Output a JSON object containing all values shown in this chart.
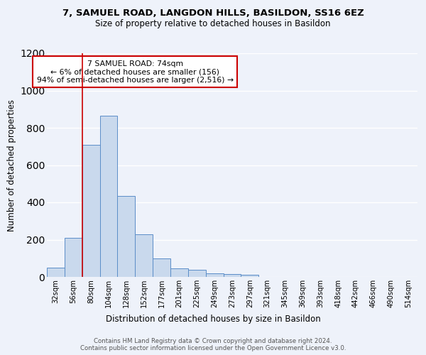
{
  "title1": "7, SAMUEL ROAD, LANGDON HILLS, BASILDON, SS16 6EZ",
  "title2": "Size of property relative to detached houses in Basildon",
  "xlabel": "Distribution of detached houses by size in Basildon",
  "ylabel": "Number of detached properties",
  "footnote": "Contains HM Land Registry data © Crown copyright and database right 2024.\nContains public sector information licensed under the Open Government Licence v3.0.",
  "bin_labels": [
    "32sqm",
    "56sqm",
    "80sqm",
    "104sqm",
    "128sqm",
    "152sqm",
    "177sqm",
    "201sqm",
    "225sqm",
    "249sqm",
    "273sqm",
    "297sqm",
    "321sqm",
    "345sqm",
    "369sqm",
    "393sqm",
    "418sqm",
    "442sqm",
    "466sqm",
    "490sqm",
    "514sqm"
  ],
  "bar_heights": [
    50,
    210,
    710,
    865,
    435,
    230,
    100,
    45,
    40,
    20,
    15,
    10,
    0,
    0,
    0,
    0,
    0,
    0,
    0,
    0,
    0
  ],
  "bar_color": "#c9d9ed",
  "bar_edge_color": "#5b8dc8",
  "background_color": "#eef2fa",
  "grid_color": "#ffffff",
  "annotation_text": "7 SAMUEL ROAD: 74sqm\n← 6% of detached houses are smaller (156)\n94% of semi-detached houses are larger (2,516) →",
  "annotation_box_color": "#ffffff",
  "annotation_box_edge": "#cc0000",
  "red_line_bin": 1.5,
  "ylim": [
    0,
    1200
  ],
  "yticks": [
    0,
    200,
    400,
    600,
    800,
    1000,
    1200
  ]
}
